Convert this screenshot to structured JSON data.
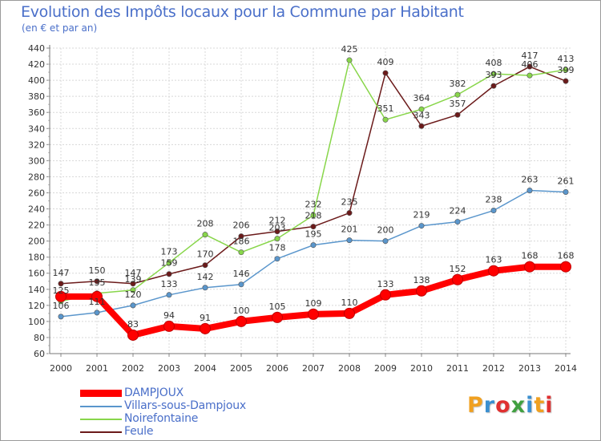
{
  "title": "Evolution des Impôts locaux pour la Commune par Habitant",
  "subtitle": "(en € et par an)",
  "logo": {
    "text": "Proxiti",
    "colors": [
      "#f0a020",
      "#3a8fd0",
      "#e03030",
      "#40a040",
      "#3a8fd0",
      "#f0a020",
      "#e03030"
    ]
  },
  "chart_data": {
    "type": "line",
    "x": [
      "2000",
      "2001",
      "2002",
      "2003",
      "2004",
      "2005",
      "2006",
      "2007",
      "2008",
      "2009",
      "2010",
      "2011",
      "2012",
      "2013",
      "2014"
    ],
    "ylim": [
      60,
      440
    ],
    "yticks": [
      60,
      80,
      100,
      120,
      140,
      160,
      180,
      200,
      220,
      240,
      260,
      280,
      300,
      320,
      340,
      360,
      380,
      400,
      420,
      440
    ],
    "grid": true,
    "legend_position": "bottom-left",
    "series": [
      {
        "name": "DAMPJOUX",
        "color": "#ff0000",
        "values": [
          131,
          131,
          83,
          94,
          91,
          100,
          105,
          109,
          110,
          133,
          138,
          152,
          163,
          168,
          168
        ],
        "labels": [
          "",
          "",
          "83",
          "94",
          "91",
          "100",
          "105",
          "109",
          "110",
          "133",
          "138",
          "152",
          "163",
          "168",
          "168"
        ]
      },
      {
        "name": "Villars-sous-Dampjoux",
        "color": "#5a96cc",
        "values": [
          106,
          111,
          120,
          133,
          142,
          146,
          178,
          195,
          201,
          200,
          219,
          224,
          238,
          263,
          261
        ],
        "labels": [
          "106",
          "111",
          "120",
          "133",
          "142",
          "146",
          "178",
          "195",
          "201",
          "200",
          "219",
          "224",
          "238",
          "263",
          "261"
        ]
      },
      {
        "name": "Noirefontaine",
        "color": "#88d64a",
        "values": [
          125,
          135,
          139,
          173,
          208,
          186,
          203,
          232,
          425,
          351,
          364,
          382,
          408,
          406,
          413
        ],
        "labels": [
          "125",
          "135",
          "139",
          "173",
          "208",
          "186",
          "203",
          "232",
          "425",
          "351",
          "364",
          "382",
          "408",
          "406",
          "413"
        ]
      },
      {
        "name": "Feule",
        "color": "#6b1a1a",
        "values": [
          147,
          150,
          147,
          159,
          170,
          206,
          212,
          218,
          235,
          409,
          343,
          357,
          393,
          417,
          399
        ],
        "labels": [
          "147",
          "150",
          "147",
          "159",
          "170",
          "206",
          "212",
          "218",
          "235",
          "409",
          "343",
          "357",
          "393",
          "417",
          "399"
        ]
      }
    ]
  }
}
